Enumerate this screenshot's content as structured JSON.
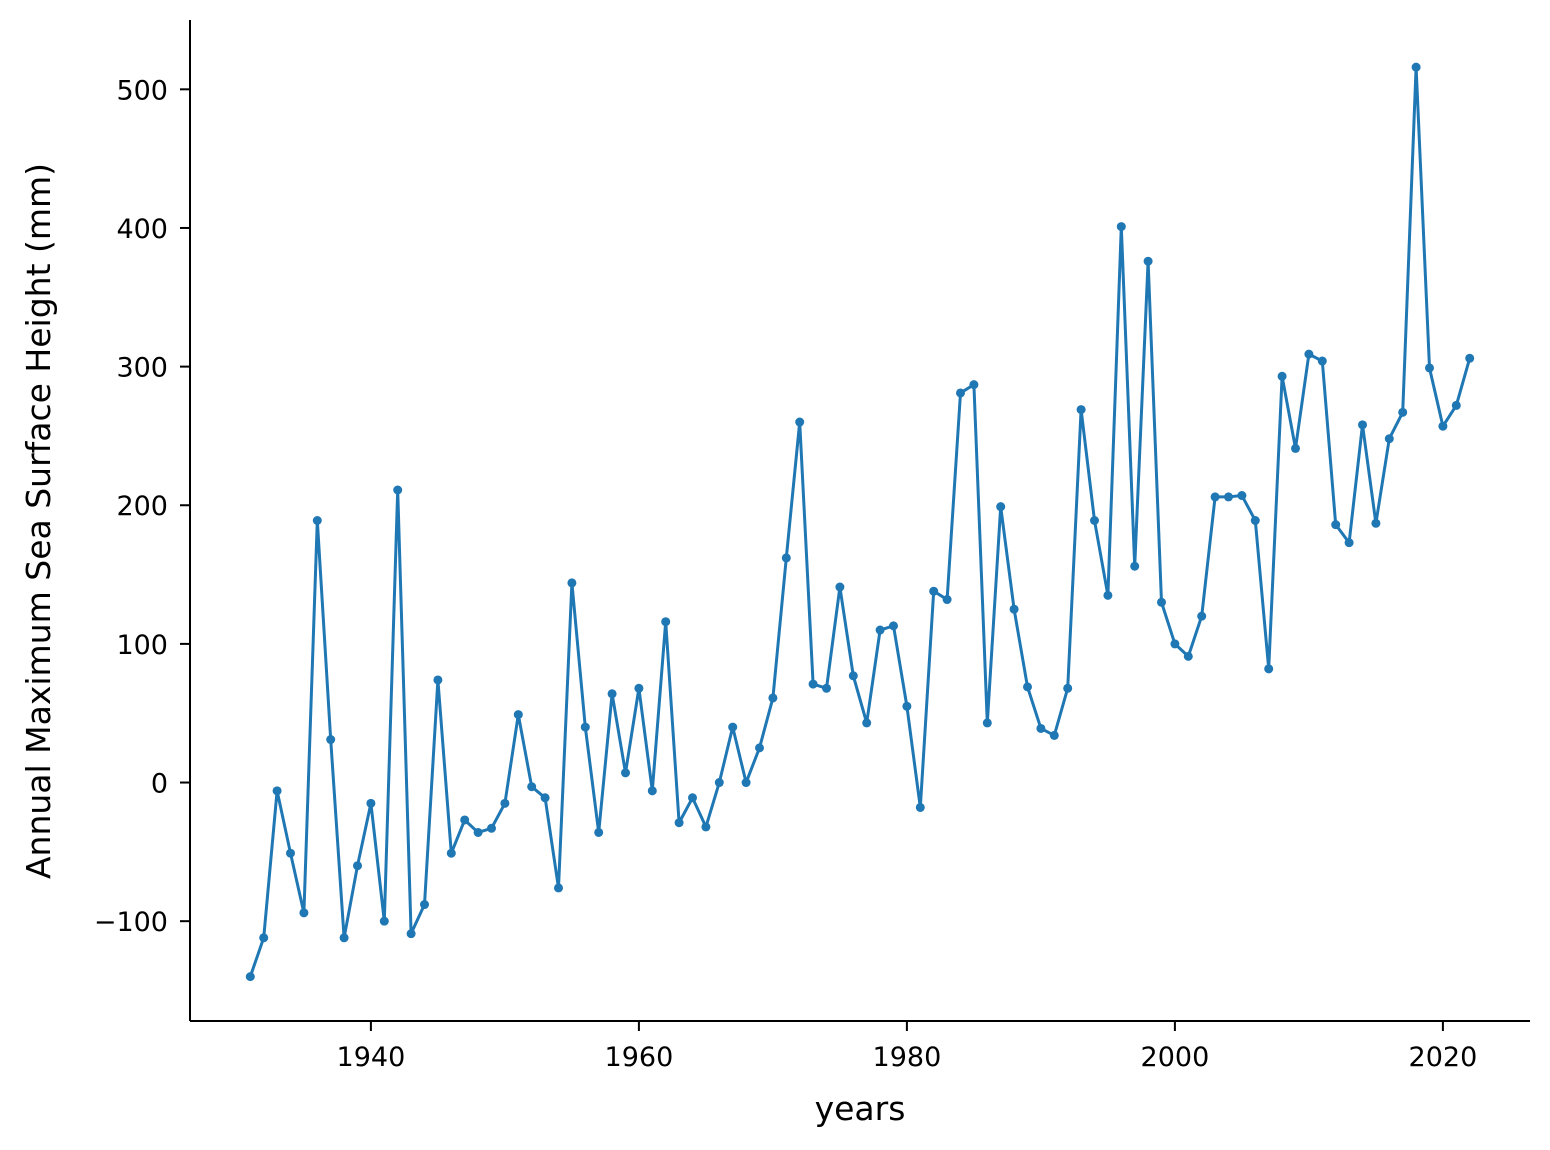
{
  "chart_data": {
    "type": "line",
    "xlabel": "years",
    "ylabel": "Annual Maximum Sea Surface Height (mm)",
    "xlim": [
      1926.5,
      2026.5
    ],
    "ylim": [
      -172,
      550
    ],
    "xticks": [
      1940,
      1960,
      1980,
      2000,
      2020
    ],
    "xtick_labels": [
      "1940",
      "1960",
      "1980",
      "2000",
      "2020"
    ],
    "yticks": [
      -100,
      0,
      100,
      200,
      300,
      400,
      500
    ],
    "ytick_labels": [
      "−100",
      "0",
      "100",
      "200",
      "300",
      "400",
      "500"
    ],
    "grid": false,
    "legend": "none",
    "line_color": "#1f77b4",
    "marker": "dot",
    "series": [
      {
        "x": [
          1931,
          1932,
          1933,
          1934,
          1935,
          1936,
          1937,
          1938,
          1939,
          1940,
          1941,
          1942,
          1943,
          1944,
          1945,
          1946,
          1947,
          1948,
          1949,
          1950,
          1951,
          1952,
          1953,
          1954,
          1955,
          1956,
          1957,
          1958,
          1959,
          1960,
          1961,
          1962,
          1963,
          1964,
          1965,
          1966,
          1967,
          1968,
          1969,
          1970,
          1971,
          1972,
          1973,
          1974,
          1975,
          1976,
          1977,
          1978,
          1979,
          1980,
          1981,
          1982,
          1983,
          1984,
          1985,
          1986,
          1987,
          1988,
          1989,
          1990,
          1991,
          1992,
          1993,
          1994,
          1995,
          1996,
          1997,
          1998,
          1999,
          2000,
          2001,
          2002,
          2003,
          2004,
          2005,
          2006,
          2007,
          2008,
          2009,
          2010,
          2011,
          2012,
          2013,
          2014,
          2015,
          2016,
          2017,
          2018,
          2019,
          2020,
          2021,
          2022
        ],
        "values": [
          -140,
          -112,
          -6,
          -51,
          -94,
          189,
          31,
          -112,
          -60,
          -15,
          -100,
          211,
          -109,
          -88,
          74,
          -51,
          -27,
          -36,
          -33,
          -15,
          49,
          -3,
          -11,
          -76,
          144,
          40,
          -36,
          64,
          7,
          68,
          -6,
          116,
          -29,
          -11,
          -32,
          0,
          40,
          0,
          25,
          61,
          162,
          260,
          71,
          68,
          141,
          77,
          43,
          110,
          113,
          55,
          -18,
          138,
          132,
          281,
          287,
          43,
          199,
          125,
          69,
          39,
          34,
          68,
          269,
          189,
          135,
          401,
          156,
          376,
          130,
          100,
          91,
          120,
          206,
          206,
          207,
          189,
          82,
          293,
          241,
          309,
          304,
          186,
          173,
          258,
          187,
          248,
          267,
          516,
          299,
          257,
          272,
          306
        ]
      }
    ]
  }
}
